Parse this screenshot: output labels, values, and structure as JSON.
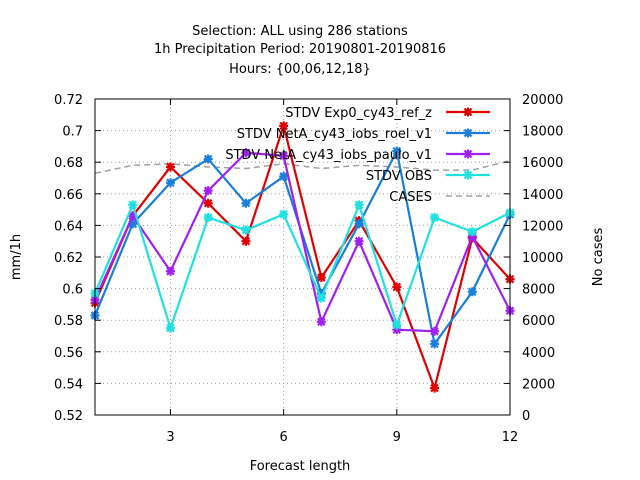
{
  "title_lines": [
    "Selection: ALL using   286 stations",
    "1h Precipitation    Period: 20190801-20190816",
    "Hours: {00,06,12,18}"
  ],
  "chart_data": {
    "type": "line",
    "xlabel": "Forecast length",
    "ylabel": "mm/1h",
    "y2label": "No cases",
    "xlim": [
      1,
      12
    ],
    "ylim": [
      0.52,
      0.72
    ],
    "y2lim": [
      0,
      20000
    ],
    "xticks": [
      "3",
      "6",
      "9",
      "12"
    ],
    "yticks": [
      "0.52",
      "0.54",
      "0.56",
      "0.58",
      "0.6",
      "0.62",
      "0.64",
      "0.66",
      "0.68",
      "0.7",
      "0.72"
    ],
    "y2ticks": [
      "0",
      "2000",
      "4000",
      "6000",
      "8000",
      "10000",
      "12000",
      "14000",
      "16000",
      "18000",
      "20000"
    ],
    "grid": true,
    "legend_position": "top-right",
    "x": [
      1,
      2,
      3,
      4,
      5,
      6,
      7,
      8,
      9,
      10,
      11,
      12
    ],
    "series": [
      {
        "name": "STDV Exp0_cy43_ref_z",
        "color": "#e00000",
        "axis": "left",
        "values": [
          0.591,
          0.646,
          0.677,
          0.654,
          0.63,
          0.703,
          0.607,
          0.643,
          0.601,
          0.537,
          0.632,
          0.606
        ]
      },
      {
        "name": "STDV NetA_cy43_iobs_roel_v1",
        "color": "#1a7fd8",
        "axis": "left",
        "values": [
          0.583,
          0.641,
          0.667,
          0.682,
          0.654,
          0.671,
          0.597,
          0.641,
          0.687,
          0.565,
          0.598,
          0.647
        ]
      },
      {
        "name": "STDV NetA_cy43_iobs_paulo_v1",
        "color": "#a020f0",
        "axis": "left",
        "values": [
          0.593,
          0.646,
          0.611,
          0.662,
          0.686,
          0.684,
          0.579,
          0.63,
          0.574,
          0.573,
          0.633,
          0.586
        ]
      },
      {
        "name": "STDV OBS",
        "color": "#20e0e0",
        "axis": "left",
        "values": [
          0.597,
          0.653,
          0.575,
          0.645,
          0.637,
          0.647,
          0.594,
          0.653,
          0.577,
          0.645,
          0.636,
          0.648
        ]
      },
      {
        "name": "CASES",
        "color": "#a0a0a0",
        "axis": "right",
        "dashed": true,
        "values": [
          15300,
          15800,
          15900,
          15700,
          15600,
          15900,
          15600,
          15800,
          15700,
          15500,
          15500,
          16100
        ]
      }
    ]
  }
}
